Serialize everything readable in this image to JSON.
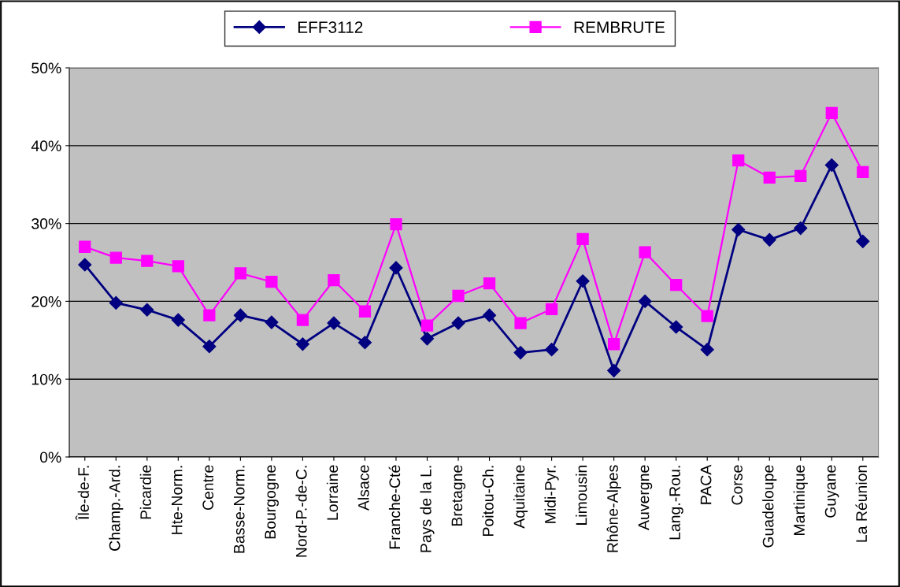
{
  "chart_data": {
    "type": "line",
    "categories": [
      "Île-de-F.",
      "Champ.-Ard.",
      "Picardie",
      "Hte-Norm.",
      "Centre",
      "Basse-Norm.",
      "Bourgogne",
      "Nord-P.-de-C.",
      "Lorraine",
      "Alsace",
      "Franche-Cté",
      "Pays de la L.",
      "Bretagne",
      "Poitou-Ch.",
      "Aquitaine",
      "Midi-Pyr.",
      "Limousin",
      "Rhône-Alpes",
      "Auvergne",
      "Lang.-Rou.",
      "PACA",
      "Corse",
      "Guadeloupe",
      "Martinique",
      "Guyane",
      "La Réunion"
    ],
    "series": [
      {
        "name": "EFF3112",
        "color": "#000080",
        "marker": "diamond",
        "values": [
          24.7,
          19.8,
          18.9,
          17.6,
          14.2,
          18.2,
          17.3,
          14.5,
          17.2,
          14.7,
          24.3,
          15.2,
          17.2,
          18.2,
          13.4,
          13.8,
          22.6,
          11.1,
          20.0,
          16.7,
          13.8,
          29.2,
          27.9,
          29.4,
          37.5,
          27.7
        ]
      },
      {
        "name": "REMBRUTE",
        "color": "#ff00ff",
        "marker": "square",
        "values": [
          27.0,
          25.6,
          25.2,
          24.5,
          18.2,
          23.6,
          22.5,
          17.6,
          22.7,
          18.7,
          29.9,
          16.9,
          20.7,
          22.3,
          17.2,
          19.0,
          28.0,
          14.5,
          26.3,
          22.1,
          18.1,
          38.1,
          35.9,
          36.1,
          44.2,
          36.6
        ]
      }
    ],
    "ylim": [
      0,
      50
    ],
    "yticks": [
      {
        "value": 0,
        "label": "0%"
      },
      {
        "value": 10,
        "label": "10%"
      },
      {
        "value": 20,
        "label": "20%"
      },
      {
        "value": 30,
        "label": "30%"
      },
      {
        "value": 40,
        "label": "40%"
      },
      {
        "value": 50,
        "label": "50%"
      }
    ],
    "grid": "y",
    "legend": "top",
    "line_style": "solid"
  }
}
